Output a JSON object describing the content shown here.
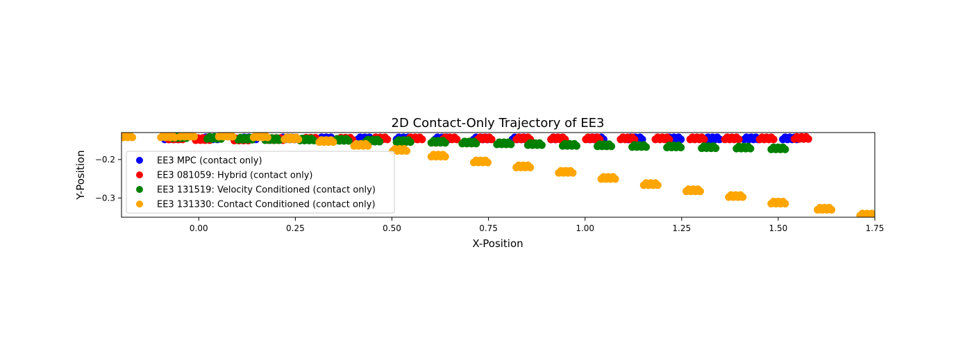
{
  "chart_data": {
    "type": "scatter",
    "title": "2D Contact-Only Trajectory of EE3",
    "xlabel": "X-Position",
    "ylabel": "Y-Position",
    "xlim": [
      -0.2,
      1.75
    ],
    "ylim": [
      -0.35,
      -0.13
    ],
    "xticks": [
      0.0,
      0.25,
      0.5,
      0.75,
      1.0,
      1.25,
      1.5,
      1.75
    ],
    "xtick_labels": [
      "0.00",
      "0.25",
      "0.50",
      "0.75",
      "1.00",
      "1.25",
      "1.50",
      "1.75"
    ],
    "yticks": [
      -0.2,
      -0.3
    ],
    "ytick_labels": [
      "−0.2",
      "−0.3"
    ],
    "grid": false,
    "legend_position": "lower-left",
    "series": [
      {
        "name": "EE3 MPC (contact only)",
        "color": "#0000ff",
        "x": [
          -0.07,
          0.03,
          0.13,
          0.23,
          0.33,
          0.43,
          0.53,
          0.63,
          0.73,
          0.83,
          0.93,
          1.03,
          1.13,
          1.23,
          1.33,
          1.43,
          1.53
        ],
        "y": [
          -0.145,
          -0.145,
          -0.145,
          -0.145,
          -0.145,
          -0.145,
          -0.145,
          -0.145,
          -0.145,
          -0.145,
          -0.145,
          -0.145,
          -0.145,
          -0.145,
          -0.145,
          -0.145,
          -0.145
        ]
      },
      {
        "name": "EE3 081059: Hybrid (contact only)",
        "color": "#ff0000",
        "x": [
          -0.06,
          0.01,
          0.11,
          0.2,
          0.29,
          0.38,
          0.47,
          0.56,
          0.65,
          0.74,
          0.84,
          0.93,
          1.02,
          1.11,
          1.2,
          1.29,
          1.38,
          1.47,
          1.56
        ],
        "y": [
          -0.145,
          -0.147,
          -0.148,
          -0.147,
          -0.146,
          -0.146,
          -0.145,
          -0.145,
          -0.145,
          -0.145,
          -0.145,
          -0.145,
          -0.145,
          -0.145,
          -0.145,
          -0.145,
          -0.145,
          -0.145,
          -0.144
        ]
      },
      {
        "name": "EE3 131519: Velocity Conditioned (contact only)",
        "color": "#008000",
        "x": [
          -0.05,
          0.04,
          0.12,
          0.19,
          0.28,
          0.37,
          0.45,
          0.53,
          0.62,
          0.7,
          0.79,
          0.87,
          0.96,
          1.05,
          1.14,
          1.23,
          1.32,
          1.41,
          1.5
        ],
        "y": [
          -0.142,
          -0.144,
          -0.146,
          -0.147,
          -0.148,
          -0.149,
          -0.151,
          -0.152,
          -0.154,
          -0.156,
          -0.158,
          -0.16,
          -0.162,
          -0.163,
          -0.165,
          -0.166,
          -0.168,
          -0.169,
          -0.171
        ]
      },
      {
        "name": "EE3 131330: Contact Conditioned (contact only)",
        "color": "#ffa500",
        "x": [
          -0.19,
          -0.08,
          -0.03,
          0.07,
          0.16,
          0.24,
          0.33,
          0.42,
          0.52,
          0.62,
          0.73,
          0.84,
          0.95,
          1.06,
          1.17,
          1.28,
          1.39,
          1.5,
          1.62,
          1.73
        ],
        "y": [
          -0.14,
          -0.14,
          -0.138,
          -0.138,
          -0.14,
          -0.145,
          -0.152,
          -0.162,
          -0.175,
          -0.19,
          -0.205,
          -0.218,
          -0.232,
          -0.248,
          -0.264,
          -0.28,
          -0.295,
          -0.312,
          -0.328,
          -0.343
        ]
      }
    ]
  }
}
